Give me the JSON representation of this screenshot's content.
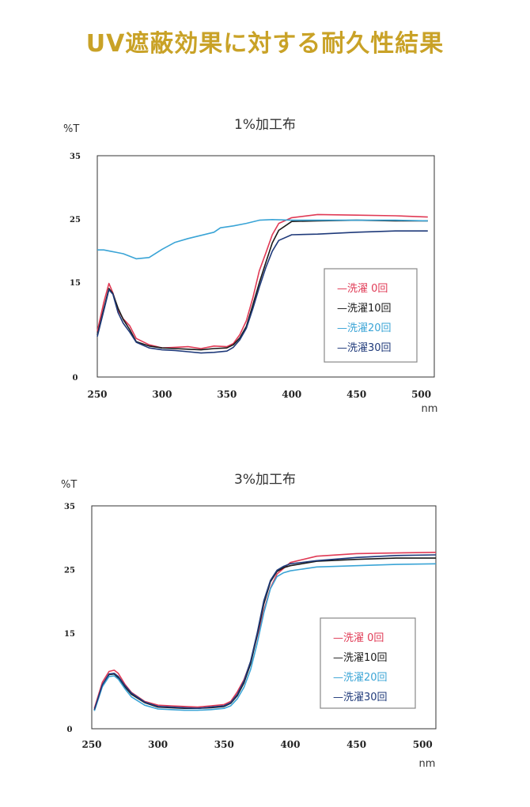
{
  "page": {
    "title": "UV遮蔽効果に対する耐久性結果"
  },
  "chart_data": [
    {
      "type": "line",
      "title": "1%加工布",
      "ylabel": "%T",
      "xlabel": "nm",
      "xlim": [
        250,
        510
      ],
      "ylim": [
        0,
        35
      ],
      "x_ticks": [
        "250",
        "300",
        "350",
        "400",
        "450",
        "500"
      ],
      "y_ticks": [
        "0",
        "15",
        "25",
        "35"
      ],
      "grid": false,
      "legend_position": "inside-right",
      "series": [
        {
          "name": "—洗濯 0回",
          "color": "#e03a55",
          "x": [
            250,
            255,
            259,
            262,
            266,
            270,
            275,
            280,
            290,
            300,
            310,
            320,
            330,
            340,
            350,
            355,
            360,
            365,
            370,
            375,
            380,
            385,
            390,
            400,
            420,
            450,
            480,
            505
          ],
          "y": [
            7.2,
            11.8,
            14.8,
            13.3,
            10.6,
            9.2,
            8.1,
            6.1,
            5.1,
            4.6,
            4.7,
            4.8,
            4.5,
            4.9,
            4.8,
            5.3,
            6.7,
            8.9,
            12.5,
            16.8,
            19.6,
            22.5,
            24.3,
            25.2,
            25.7,
            25.6,
            25.5,
            25.3
          ]
        },
        {
          "name": "—洗濯10回",
          "color": "#1a1a1a",
          "x": [
            250,
            255,
            259,
            262,
            266,
            270,
            275,
            280,
            290,
            300,
            310,
            320,
            330,
            340,
            350,
            355,
            360,
            365,
            370,
            375,
            380,
            385,
            390,
            400,
            420,
            450,
            480,
            505
          ],
          "y": [
            6.6,
            10.8,
            14.0,
            13.2,
            10.9,
            9.1,
            7.5,
            5.6,
            4.9,
            4.6,
            4.5,
            4.4,
            4.3,
            4.5,
            4.6,
            5.1,
            6.2,
            8.0,
            11.4,
            14.9,
            18.1,
            21.2,
            23.2,
            24.6,
            24.7,
            24.8,
            24.7,
            24.7
          ]
        },
        {
          "name": "—洗濯20回",
          "color": "#3aa4d6",
          "x": [
            250,
            255,
            260,
            265,
            270,
            280,
            290,
            300,
            310,
            320,
            330,
            340,
            345,
            355,
            365,
            375,
            385,
            400,
            420,
            450,
            480,
            505
          ],
          "y": [
            20.1,
            20.1,
            19.9,
            19.7,
            19.5,
            18.7,
            18.9,
            20.2,
            21.3,
            21.9,
            22.4,
            22.9,
            23.6,
            23.9,
            24.3,
            24.8,
            24.9,
            24.8,
            24.8,
            24.8,
            24.8,
            24.7
          ]
        },
        {
          "name": "—洗濯30回",
          "color": "#1f3a7a",
          "x": [
            250,
            255,
            259,
            262,
            266,
            270,
            275,
            280,
            290,
            300,
            310,
            320,
            330,
            340,
            350,
            355,
            360,
            365,
            370,
            375,
            380,
            385,
            390,
            400,
            420,
            450,
            480,
            505
          ],
          "y": [
            6.4,
            10.5,
            13.8,
            13.1,
            10.2,
            8.5,
            7.1,
            5.5,
            4.6,
            4.3,
            4.2,
            4.0,
            3.8,
            3.9,
            4.1,
            4.7,
            5.9,
            7.7,
            10.8,
            14.2,
            17.3,
            19.9,
            21.6,
            22.5,
            22.6,
            22.9,
            23.1,
            23.1
          ]
        }
      ]
    },
    {
      "type": "line",
      "title": "3%加工布",
      "ylabel": "%T",
      "xlabel": "nm",
      "xlim": [
        250,
        510
      ],
      "ylim": [
        0,
        35
      ],
      "x_ticks": [
        "250",
        "300",
        "350",
        "400",
        "450",
        "500"
      ],
      "y_ticks": [
        "0",
        "15",
        "25",
        "35"
      ],
      "grid": false,
      "legend_position": "inside-right",
      "series": [
        {
          "name": "—洗濯 0回",
          "color": "#e03a55",
          "x": [
            252,
            258,
            263,
            267,
            270,
            275,
            280,
            290,
            300,
            310,
            320,
            330,
            340,
            350,
            355,
            360,
            365,
            370,
            375,
            380,
            385,
            390,
            395,
            400,
            420,
            450,
            480,
            510
          ],
          "y": [
            3.2,
            7.3,
            9.0,
            9.2,
            8.7,
            7.0,
            5.7,
            4.3,
            3.7,
            3.6,
            3.5,
            3.4,
            3.6,
            3.8,
            4.3,
            5.8,
            7.7,
            10.5,
            14.5,
            18.5,
            22.1,
            24.3,
            25.2,
            26.1,
            27.1,
            27.5,
            27.6,
            27.7
          ]
        },
        {
          "name": "—洗濯10回",
          "color": "#1a1a1a",
          "x": [
            252,
            258,
            263,
            267,
            270,
            275,
            280,
            290,
            300,
            310,
            320,
            330,
            340,
            350,
            355,
            360,
            365,
            370,
            375,
            380,
            385,
            390,
            395,
            400,
            420,
            450,
            480,
            510
          ],
          "y": [
            2.9,
            6.8,
            8.5,
            8.6,
            8.0,
            6.6,
            5.4,
            4.1,
            3.4,
            3.3,
            3.2,
            3.2,
            3.3,
            3.5,
            4.0,
            5.2,
            7.2,
            10.2,
            14.7,
            19.6,
            23.1,
            24.7,
            25.3,
            25.6,
            26.3,
            26.6,
            26.8,
            26.8
          ]
        },
        {
          "name": "—洗濯20回",
          "color": "#3aa4d6",
          "x": [
            252,
            258,
            263,
            267,
            270,
            275,
            280,
            290,
            300,
            310,
            320,
            330,
            340,
            350,
            355,
            360,
            365,
            370,
            375,
            380,
            385,
            390,
            395,
            400,
            420,
            450,
            480,
            510
          ],
          "y": [
            2.8,
            6.6,
            8.2,
            8.3,
            7.8,
            6.3,
            5.0,
            3.7,
            3.1,
            3.0,
            2.9,
            2.9,
            3.0,
            3.2,
            3.6,
            4.7,
            6.5,
            9.3,
            13.4,
            18.2,
            22.0,
            23.9,
            24.5,
            24.8,
            25.4,
            25.6,
            25.8,
            25.9
          ]
        },
        {
          "name": "—洗濯30回",
          "color": "#1f3a7a",
          "x": [
            252,
            258,
            263,
            267,
            270,
            275,
            280,
            290,
            300,
            310,
            320,
            330,
            340,
            350,
            355,
            360,
            365,
            370,
            375,
            380,
            385,
            390,
            395,
            400,
            420,
            450,
            480,
            510
          ],
          "y": [
            3.0,
            6.9,
            8.6,
            8.7,
            8.2,
            6.8,
            5.6,
            4.2,
            3.5,
            3.4,
            3.3,
            3.2,
            3.4,
            3.6,
            4.1,
            5.4,
            7.5,
            10.6,
            15.0,
            20.1,
            23.3,
            24.9,
            25.5,
            25.9,
            26.4,
            26.9,
            27.2,
            27.3
          ]
        }
      ]
    }
  ]
}
